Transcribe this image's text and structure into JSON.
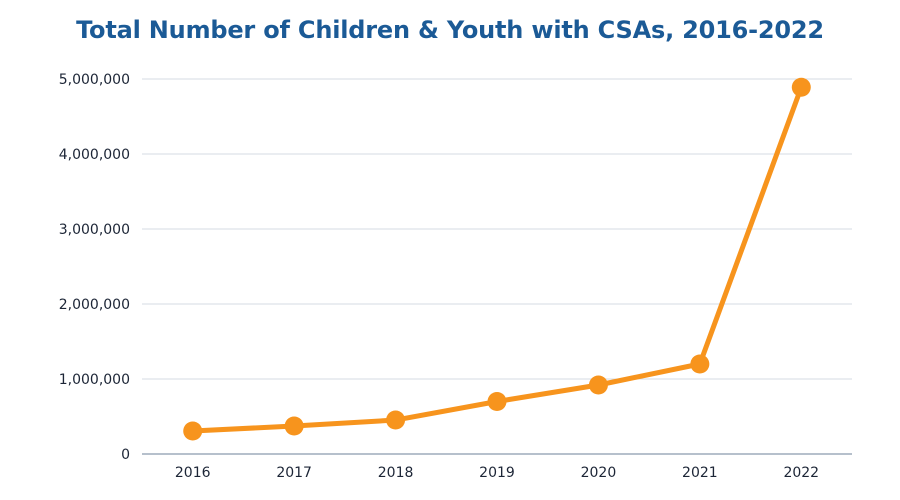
{
  "chart_data": {
    "type": "line",
    "title": "Total Number of Children & Youth with CSAs, 2016-2022",
    "xlabel": "",
    "ylabel": "",
    "categories": [
      "2016",
      "2017",
      "2018",
      "2019",
      "2020",
      "2021",
      "2022"
    ],
    "series": [
      {
        "name": "Children & Youth with CSAs",
        "values": [
          307000,
          373000,
          453000,
          700000,
          920000,
          1200000,
          4890000
        ],
        "color": "#f7941d"
      }
    ],
    "ylim": [
      0,
      5000000
    ],
    "yticks": [
      0,
      1000000,
      2000000,
      3000000,
      4000000,
      5000000
    ],
    "ytick_labels": [
      "0",
      "1,000,000",
      "2,000,000",
      "3,000,000",
      "4,000,000",
      "5,000,000"
    ],
    "grid": true,
    "legend": "none",
    "colors": {
      "title": "#1b5a96",
      "line": "#f7941d",
      "grid": "#d5dbe3",
      "axis": "#8a9aae",
      "tick_text": "#1c2536"
    }
  }
}
